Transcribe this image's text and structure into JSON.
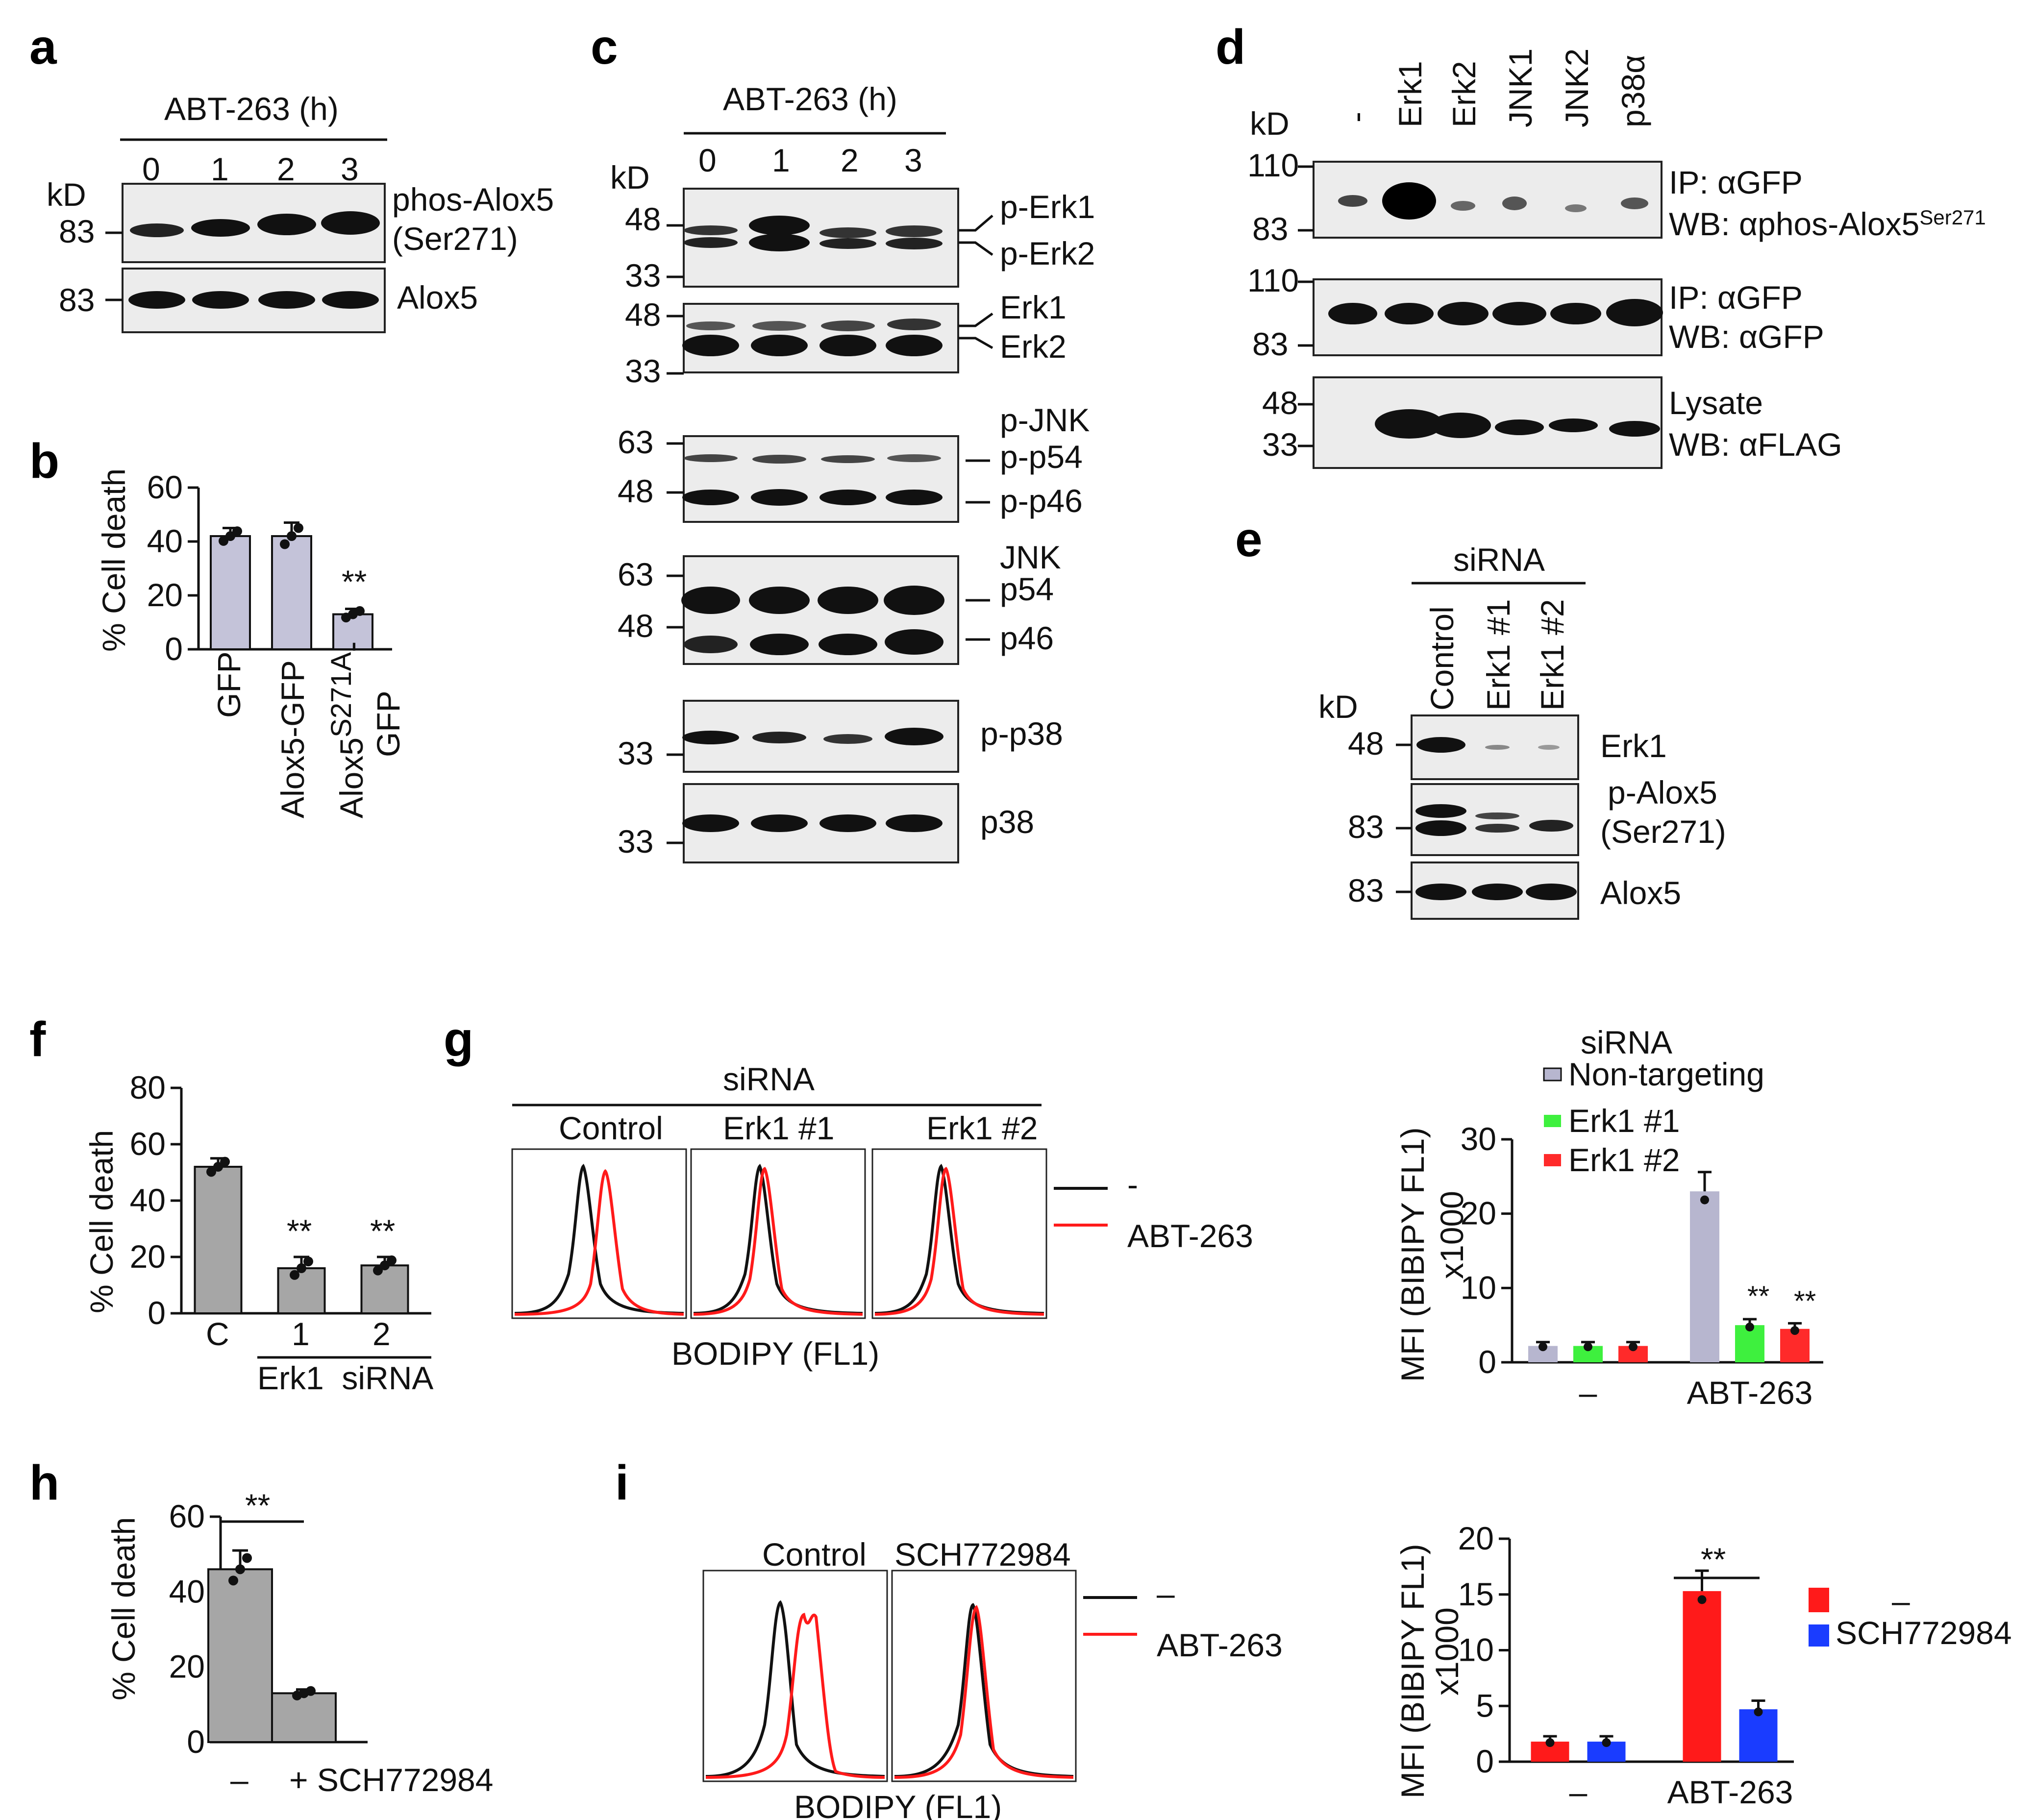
{
  "panels": {
    "a": {
      "letter": "a",
      "treatment": "ABT-263 (h)",
      "kd": "kD",
      "lanes": [
        "0",
        "1",
        "2",
        "3"
      ],
      "markers": [
        "83",
        "83"
      ],
      "bands": [
        "phos-Alox5",
        "(Ser271)",
        "Alox5"
      ]
    },
    "b": {
      "letter": "b",
      "ylabel": "% Cell death",
      "stars": "**",
      "yticks": [
        "0",
        "20",
        "40",
        "60"
      ],
      "xlabels": [
        "GFP",
        "Alox5-GFP",
        "Alox5",
        "S271A",
        "-",
        "GFP"
      ]
    },
    "c": {
      "letter": "c",
      "treatment": "ABT-263 (h)",
      "kd": "kD",
      "lanes": [
        "0",
        "1",
        "2",
        "3"
      ],
      "markers": [
        "48",
        "33",
        "48",
        "33",
        "63",
        "48",
        "63",
        "48",
        "33",
        "33"
      ],
      "bands": [
        "p-Erk1",
        "p-Erk2",
        "Erk1",
        "Erk2",
        "p-JNK",
        "p-p54",
        "p-p46",
        "JNK",
        "p54",
        "p46",
        "p-p38",
        "p38"
      ]
    },
    "d": {
      "letter": "d",
      "kd": "kD",
      "lanes": [
        "-",
        "Erk1",
        "Erk2",
        "JNK1",
        "JNK2",
        "p38α"
      ],
      "markers": [
        "110",
        "83",
        "110",
        "83",
        "48",
        "33"
      ],
      "labels": {
        "ip1": "IP: αGFP",
        "wb1": "WB: αphos-Alox5",
        "wb1_sup": "Ser271",
        "ip2": "IP: αGFP",
        "wb2": "WB: αGFP",
        "lys": "Lysate",
        "wb3": "WB: αFLAG"
      }
    },
    "e": {
      "letter": "e",
      "group": "siRNA",
      "kd": "kD",
      "lanes": [
        "Control",
        "Erk1 #1",
        "Erk1 #2"
      ],
      "markers": [
        "48",
        "83",
        "83"
      ],
      "bands": [
        "Erk1",
        "p-Alox5",
        "(Ser271)",
        "Alox5"
      ]
    },
    "f": {
      "letter": "f",
      "ylabel": "% Cell death",
      "yticks": [
        "0",
        "20",
        "40",
        "60",
        "80"
      ],
      "xlabels": [
        "C",
        "1",
        "2"
      ],
      "group": "Erk1  siRNA",
      "stars": [
        "**",
        "**"
      ]
    },
    "g": {
      "letter": "g",
      "group": "siRNA",
      "conditions": [
        "Control",
        "Erk1 #1",
        "Erk1 #2"
      ],
      "xlabel": "BODIPY (FL1)",
      "legend": [
        "-",
        "ABT-263"
      ],
      "bar": {
        "title": "siRNA",
        "legend": [
          "Non-targeting",
          "Erk1 #1",
          "Erk1 #2"
        ],
        "ylabel1": "MFI (BIBIPY FL1)",
        "ylabel2": "x1000",
        "yticks": [
          "0",
          "10",
          "20",
          "30"
        ],
        "xgroups": [
          "–",
          "ABT-263"
        ],
        "stars": [
          "**",
          "**"
        ]
      }
    },
    "h": {
      "letter": "h",
      "ylabel": "% Cell death",
      "yticks": [
        "0",
        "20",
        "40",
        "60"
      ],
      "xlabels": [
        "–",
        "+ SCH772984"
      ],
      "stars": "**"
    },
    "i": {
      "letter": "i",
      "conditions": [
        "Control",
        "SCH772984"
      ],
      "xlabel": "BODIPY (FL1)",
      "legend": [
        "–",
        "ABT-263"
      ],
      "bar": {
        "legend": [
          "–",
          "SCH772984"
        ],
        "ylabel1": "MFI (BIBIPY FL1)",
        "ylabel2": "x1000",
        "yticks": [
          "0",
          "5",
          "10",
          "15",
          "20"
        ],
        "xgroups": [
          "–",
          "ABT-263"
        ],
        "stars": "**"
      }
    }
  },
  "chart_data": [
    {
      "id": "b",
      "type": "bar",
      "ylabel": "% Cell death",
      "ylim": [
        0,
        60
      ],
      "categories": [
        "GFP",
        "Alox5-GFP",
        "Alox5S271A-GFP"
      ],
      "values": [
        42,
        42,
        13
      ],
      "errors": [
        3,
        5,
        2
      ],
      "color": "#c4c3d9"
    },
    {
      "id": "f",
      "type": "bar",
      "ylabel": "% Cell death",
      "ylim": [
        0,
        80
      ],
      "categories": [
        "C",
        "Erk1 siRNA 1",
        "Erk1 siRNA 2"
      ],
      "values": [
        52,
        16,
        17
      ],
      "errors": [
        3,
        4,
        3
      ],
      "color": "#a6a6a6"
    },
    {
      "id": "g",
      "type": "bar",
      "ylabel": "MFI (BIBIPY FL1) x1000",
      "ylim": [
        0,
        30
      ],
      "categories": [
        "–",
        "ABT-263"
      ],
      "series": [
        {
          "name": "Non-targeting",
          "values": [
            2.2,
            23
          ],
          "color": "#b7b6cf"
        },
        {
          "name": "Erk1 #1",
          "values": [
            2.2,
            5
          ],
          "color": "#3ef03e"
        },
        {
          "name": "Erk1 #2",
          "values": [
            2.2,
            4.5
          ],
          "color": "#ff2a2a"
        }
      ]
    },
    {
      "id": "h",
      "type": "bar",
      "ylabel": "% Cell death",
      "ylim": [
        0,
        60
      ],
      "categories": [
        "–",
        "+ SCH772984"
      ],
      "values": [
        46,
        13
      ],
      "errors": [
        5,
        1
      ],
      "color": "#a6a6a6"
    },
    {
      "id": "i",
      "type": "bar",
      "ylabel": "MFI (BIBIPY FL1) x1000",
      "ylim": [
        0,
        20
      ],
      "categories": [
        "–",
        "ABT-263"
      ],
      "series": [
        {
          "name": "–",
          "values": [
            1.8,
            15.3
          ],
          "color": "#ff1a1a"
        },
        {
          "name": "SCH772984",
          "values": [
            1.8,
            4.7
          ],
          "color": "#1a3cff"
        }
      ]
    }
  ]
}
